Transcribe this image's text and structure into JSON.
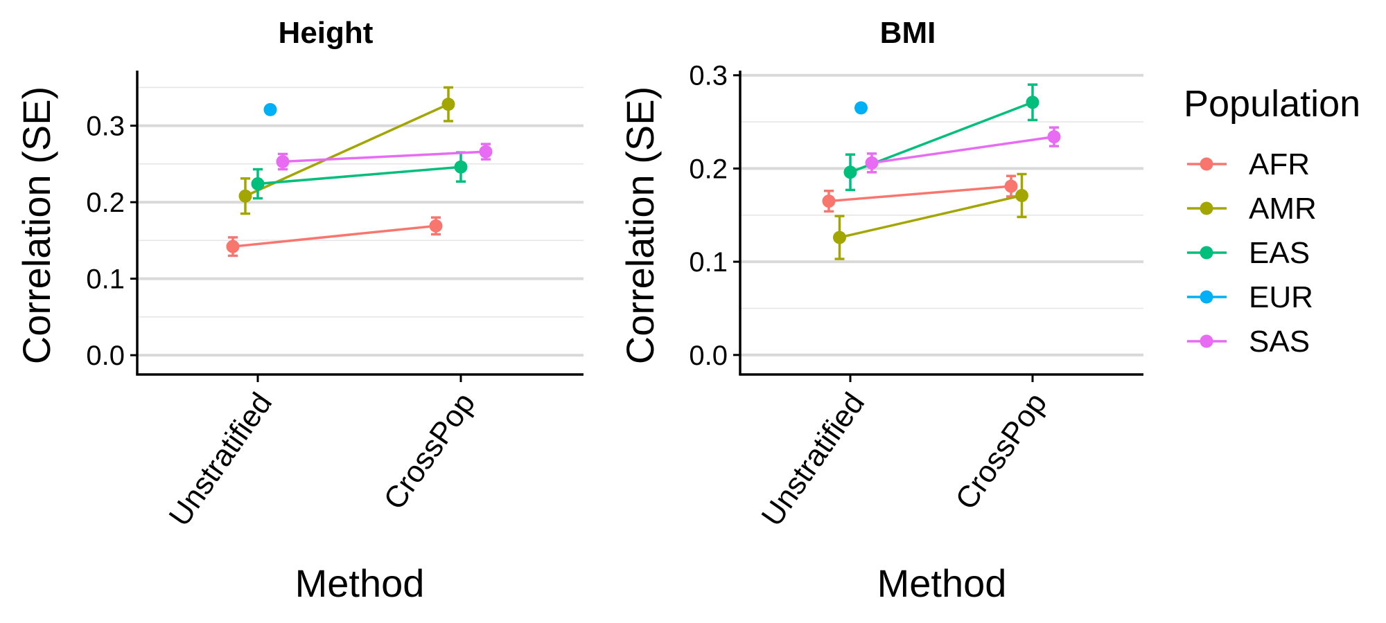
{
  "chart_data": [
    {
      "type": "scatter",
      "title": "Height",
      "xlabel": "Method",
      "ylabel": "Correlation (SE)",
      "categories": [
        "Unstratified",
        "CrossPop"
      ],
      "ylim": [
        -0.018,
        0.372
      ],
      "yticks": [
        "0.0",
        "0.1",
        "0.2",
        "0.3"
      ],
      "grid": true,
      "series": [
        {
          "name": "AFR",
          "values": [
            0.142,
            0.169
          ],
          "se": [
            0.012,
            0.011
          ]
        },
        {
          "name": "AMR",
          "values": [
            0.208,
            0.328
          ],
          "se": [
            0.023,
            0.022
          ]
        },
        {
          "name": "EAS",
          "values": [
            0.224,
            0.246
          ],
          "se": [
            0.019,
            0.019
          ]
        },
        {
          "name": "EUR",
          "values": [
            0.321,
            null
          ],
          "se": [
            0.0,
            null
          ]
        },
        {
          "name": "SAS",
          "values": [
            0.253,
            0.266
          ],
          "se": [
            0.01,
            0.01
          ]
        }
      ]
    },
    {
      "type": "scatter",
      "title": "BMI",
      "xlabel": "Method",
      "ylabel": "Correlation (SE)",
      "categories": [
        "Unstratified",
        "CrossPop"
      ],
      "ylim": [
        -0.015,
        0.305
      ],
      "yticks": [
        "0.0",
        "0.1",
        "0.2",
        "0.3"
      ],
      "grid": true,
      "series": [
        {
          "name": "AFR",
          "values": [
            0.165,
            0.181
          ],
          "se": [
            0.011,
            0.011
          ]
        },
        {
          "name": "AMR",
          "values": [
            0.126,
            0.171
          ],
          "se": [
            0.023,
            0.023
          ]
        },
        {
          "name": "EAS",
          "values": [
            0.196,
            0.271
          ],
          "se": [
            0.019,
            0.019
          ]
        },
        {
          "name": "EUR",
          "values": [
            0.265,
            null
          ],
          "se": [
            0.0,
            null
          ]
        },
        {
          "name": "SAS",
          "values": [
            0.206,
            0.234
          ],
          "se": [
            0.01,
            0.01
          ]
        }
      ]
    }
  ],
  "legend": {
    "title": "Population",
    "position": "right",
    "items": [
      {
        "name": "AFR",
        "color": "#F8766D"
      },
      {
        "name": "AMR",
        "color": "#A3A500"
      },
      {
        "name": "EAS",
        "color": "#00BF7D"
      },
      {
        "name": "EUR",
        "color": "#00B0F6"
      },
      {
        "name": "SAS",
        "color": "#E76BF3"
      }
    ]
  }
}
